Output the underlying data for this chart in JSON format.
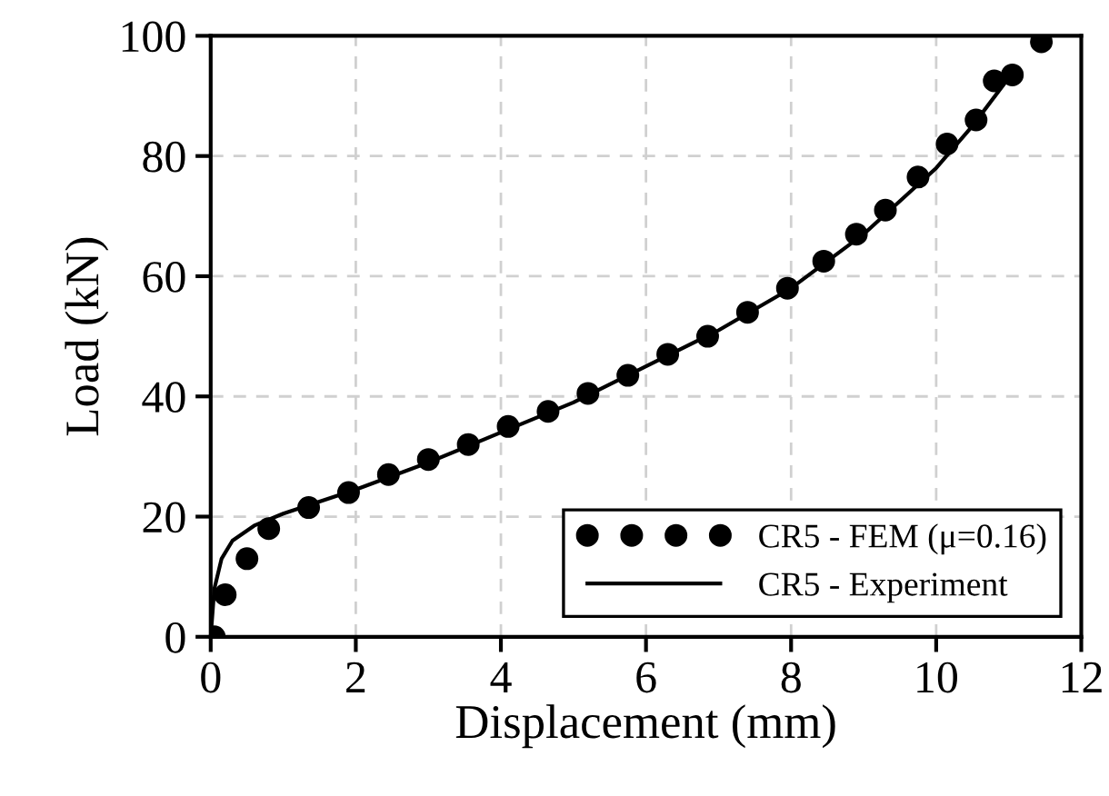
{
  "chart_data": {
    "type": "line",
    "xlabel": "Displacement (mm)",
    "ylabel": "Load (kN)",
    "xlim": [
      0,
      12
    ],
    "ylim": [
      0,
      100
    ],
    "xticks": [
      0,
      2,
      4,
      6,
      8,
      10,
      12
    ],
    "yticks": [
      0,
      20,
      40,
      60,
      80,
      100
    ],
    "grid": true,
    "legend": "bottom right",
    "series": [
      {
        "name": "CR5 - FEM (μ=0.16)",
        "type": "scatter",
        "marker": "circle",
        "color": "#000000",
        "x": [
          0.05,
          0.2,
          0.5,
          0.8,
          1.35,
          1.9,
          2.45,
          3.0,
          3.55,
          4.1,
          4.65,
          5.2,
          5.75,
          6.3,
          6.85,
          7.4,
          7.95,
          8.45,
          8.9,
          9.3,
          9.75,
          10.15,
          10.55,
          10.8,
          11.05,
          11.45
        ],
        "values": [
          0,
          7,
          13,
          18,
          21.5,
          24,
          27,
          29.5,
          32,
          35,
          37.5,
          40.5,
          43.5,
          47,
          50,
          54,
          58,
          62.5,
          67,
          71,
          76.5,
          82,
          86,
          92.5,
          93.5,
          99
        ]
      },
      {
        "name": "CR5 - Experiment",
        "line_style": "solid",
        "color": "#000000",
        "x": [
          0,
          0.05,
          0.15,
          0.3,
          0.6,
          1,
          2,
          3,
          4,
          5,
          6,
          7,
          8,
          9,
          10,
          10.5,
          11
        ],
        "values": [
          0,
          8,
          13,
          16,
          18.5,
          20.5,
          24.5,
          29,
          34,
          39,
          45,
          51,
          58,
          67,
          78,
          85,
          93
        ]
      }
    ]
  }
}
